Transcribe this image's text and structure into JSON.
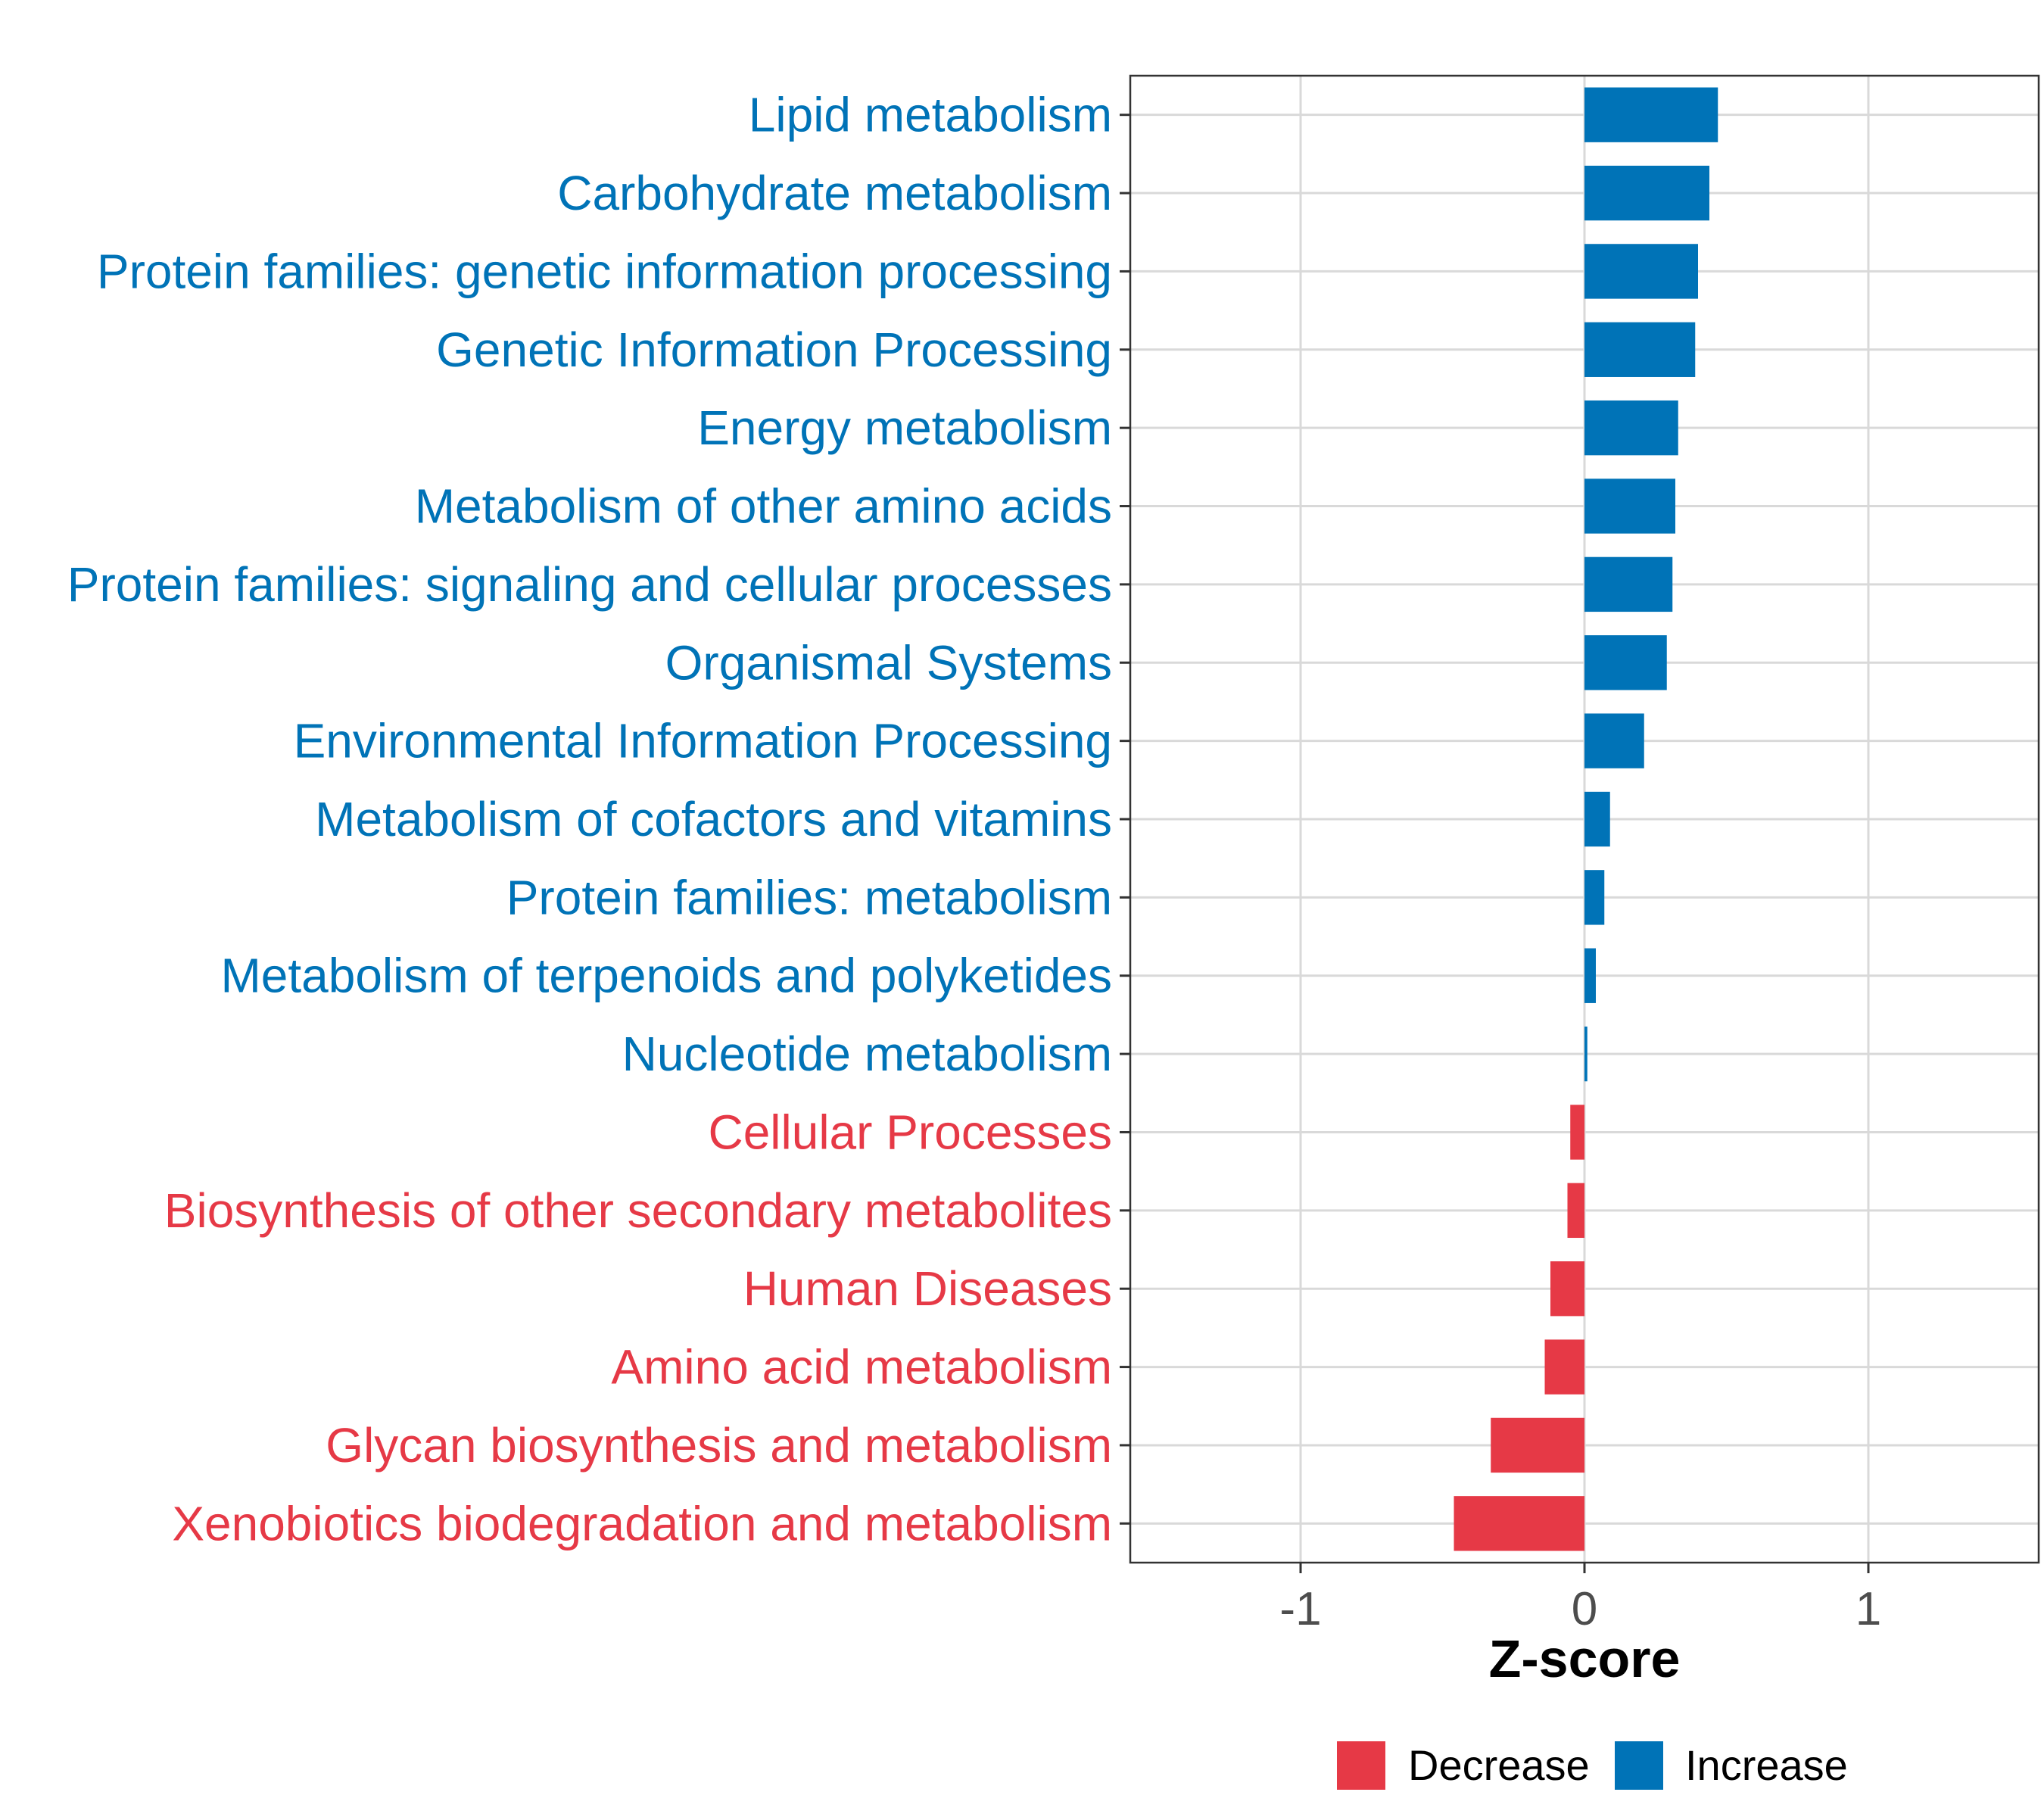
{
  "colors": {
    "increase": "#0073B7",
    "decrease": "#E63946"
  },
  "chart_data": {
    "type": "bar",
    "orientation": "horizontal",
    "xlabel": "Z-score",
    "xlim": [
      -1.6,
      1.6
    ],
    "x_ticks": [
      -1,
      0,
      1
    ],
    "x_tick_labels": [
      "-1",
      "0",
      "1"
    ],
    "grid": true,
    "legend_position": "bottom",
    "legend": [
      {
        "label": "Decrease",
        "direction": "decrease"
      },
      {
        "label": "Increase",
        "direction": "increase"
      }
    ],
    "categories": [
      "Lipid metabolism",
      "Carbohydrate metabolism",
      "Protein families: genetic information processing",
      "Genetic Information Processing",
      "Energy metabolism",
      "Metabolism of other amino acids",
      "Protein families: signaling and cellular processes",
      "Organismal Systems",
      "Environmental Information Processing",
      "Metabolism of cofactors and vitamins",
      "Protein families: metabolism",
      "Metabolism of terpenoids and polyketides",
      "Nucleotide metabolism",
      "Cellular Processes",
      "Biosynthesis of other secondary metabolites",
      "Human Diseases",
      "Amino acid metabolism",
      "Glycan biosynthesis and metabolism",
      "Xenobiotics biodegradation and metabolism"
    ],
    "values": [
      0.47,
      0.44,
      0.4,
      0.39,
      0.33,
      0.32,
      0.31,
      0.29,
      0.21,
      0.09,
      0.07,
      0.04,
      0.01,
      -0.05,
      -0.06,
      -0.12,
      -0.14,
      -0.33,
      -0.46
    ],
    "directions": [
      "increase",
      "increase",
      "increase",
      "increase",
      "increase",
      "increase",
      "increase",
      "increase",
      "increase",
      "increase",
      "increase",
      "increase",
      "increase",
      "decrease",
      "decrease",
      "decrease",
      "decrease",
      "decrease",
      "decrease"
    ]
  }
}
